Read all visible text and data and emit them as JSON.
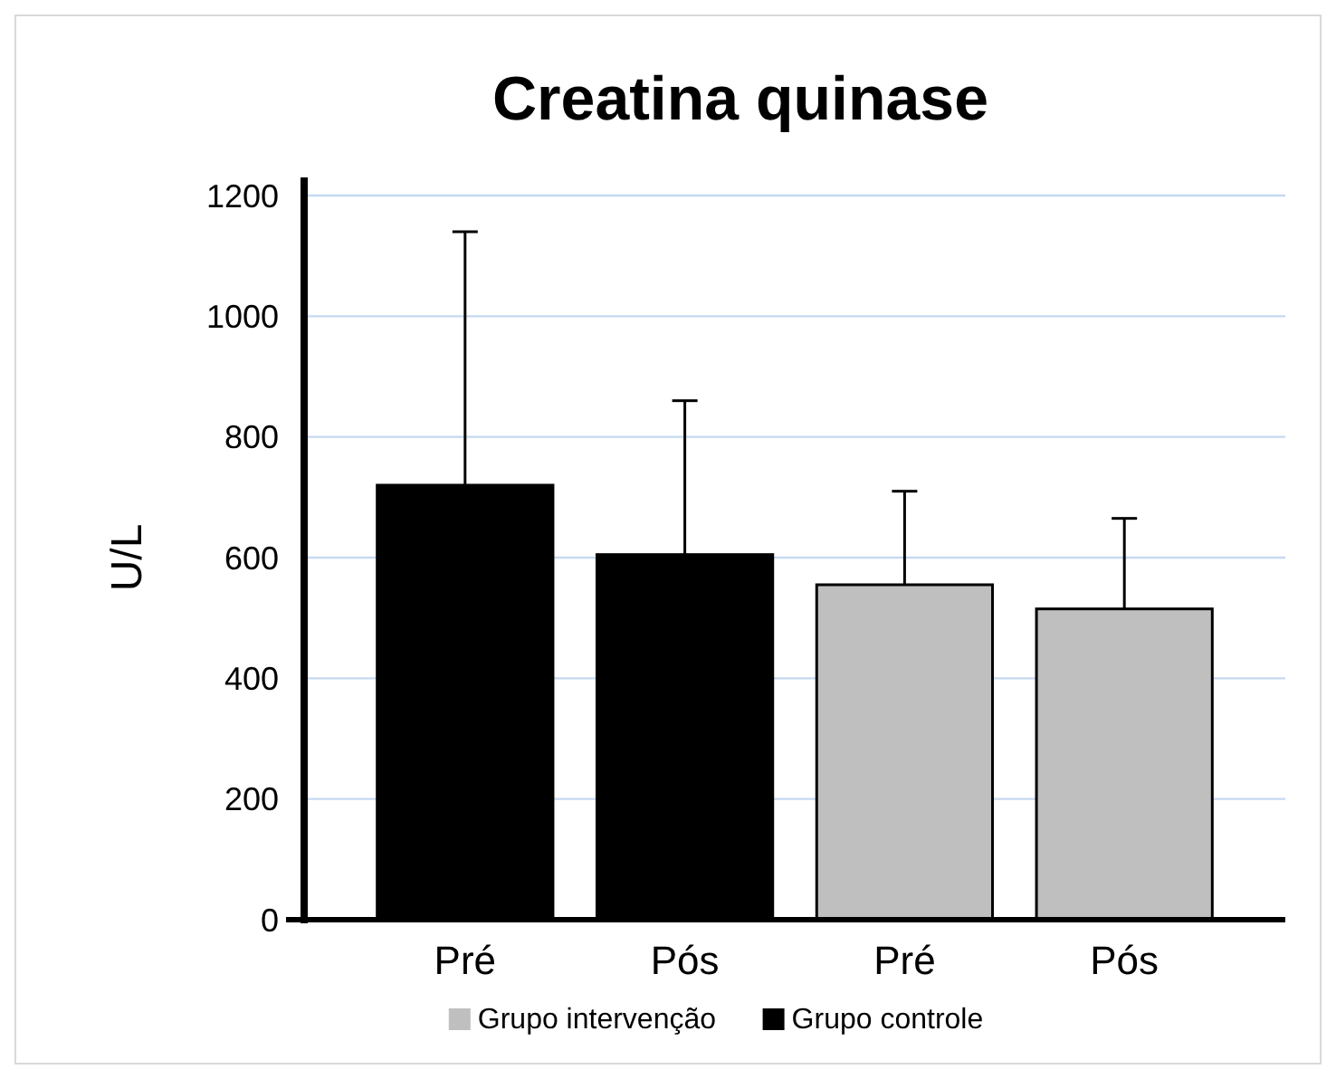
{
  "chart_data": {
    "type": "bar",
    "title": "Creatina quinase",
    "ylabel": "U/L",
    "categories": [
      "Pré",
      "Pós",
      "Pré",
      "Pós"
    ],
    "series": [
      {
        "name": "Grupo intervenção",
        "color": "#bfbfbf",
        "values": [
          null,
          null,
          555,
          515
        ],
        "errors": [
          null,
          null,
          [
            555,
            710
          ],
          [
            515,
            665
          ]
        ]
      },
      {
        "name": "Grupo controle",
        "color": "#000000",
        "values": [
          720,
          605,
          null,
          null
        ],
        "errors": [
          [
            720,
            1140
          ],
          [
            605,
            860
          ],
          null,
          null
        ]
      }
    ],
    "ylim": [
      0,
      1200
    ],
    "yticks": [
      0,
      200,
      400,
      600,
      800,
      1000,
      1200
    ],
    "grid": "y",
    "legend": "bottom"
  }
}
